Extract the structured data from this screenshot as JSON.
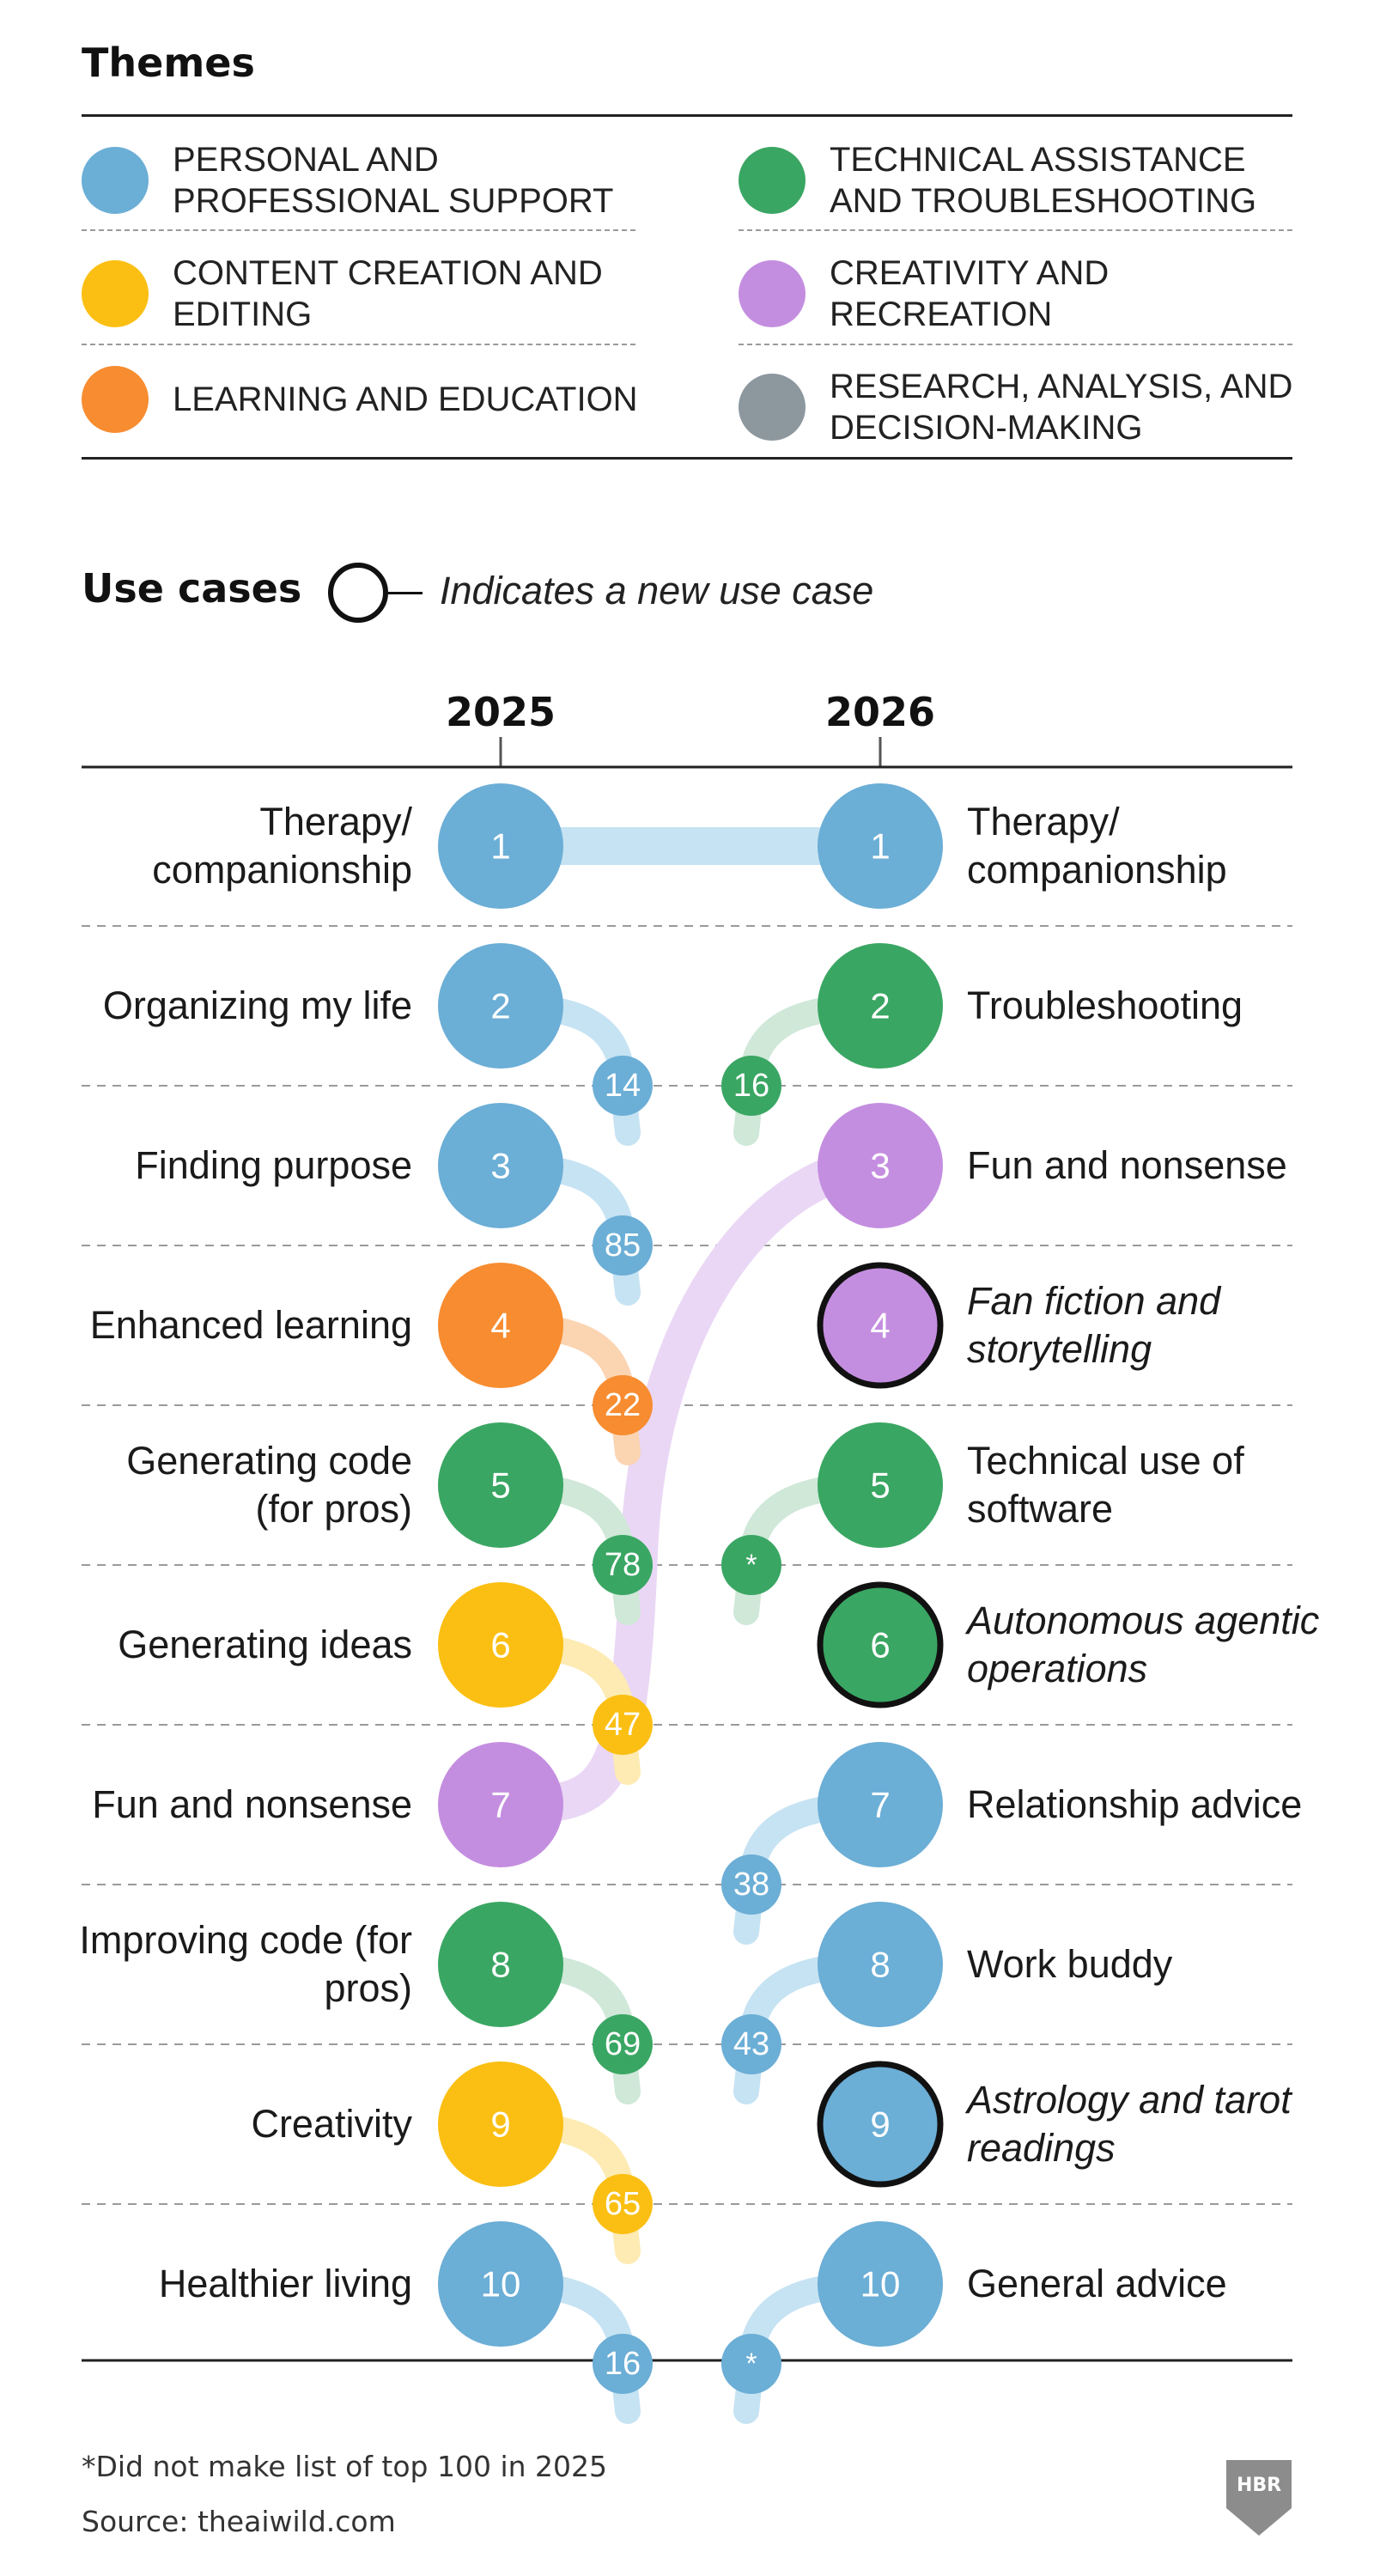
{
  "themes": {
    "title": "Themes",
    "items": [
      {
        "label": "PERSONAL AND PROFESSIONAL SUPPORT",
        "color": "#6baed6"
      },
      {
        "label": "TECHNICAL ASSISTANCE AND TROUBLESHOOTING",
        "color": "#3aa663"
      },
      {
        "label": "CONTENT CREATION AND EDITING",
        "color": "#fbbf13"
      },
      {
        "label": "CREATIVITY AND RECREATION",
        "color": "#c48ee0"
      },
      {
        "label": "LEARNING AND EDUCATION",
        "color": "#f78c30"
      },
      {
        "label": "RESEARCH, ANALYSIS, AND DECISION-MAKING",
        "color": "#8c979e"
      }
    ]
  },
  "usecases": {
    "title": "Use cases",
    "legend_note": "Indicates a new use case"
  },
  "chart_data": {
    "type": "bump",
    "columns": [
      "2025",
      "2026"
    ],
    "left": [
      {
        "rank": "1",
        "label": "Therapy/ companionship",
        "theme": "PERSONAL AND PROFESSIONAL SUPPORT",
        "rank_2026": "1"
      },
      {
        "rank": "2",
        "label": "Organizing my life",
        "theme": "PERSONAL AND PROFESSIONAL SUPPORT",
        "rank_2026": "14"
      },
      {
        "rank": "3",
        "label": "Finding purpose",
        "theme": "PERSONAL AND PROFESSIONAL SUPPORT",
        "rank_2026": "85"
      },
      {
        "rank": "4",
        "label": "Enhanced learning",
        "theme": "LEARNING AND EDUCATION",
        "rank_2026": "22"
      },
      {
        "rank": "5",
        "label": "Generating code (for pros)",
        "theme": "TECHNICAL ASSISTANCE AND TROUBLESHOOTING",
        "rank_2026": "78"
      },
      {
        "rank": "6",
        "label": "Generating ideas",
        "theme": "CONTENT CREATION AND EDITING",
        "rank_2026": "47"
      },
      {
        "rank": "7",
        "label": "Fun and nonsense",
        "theme": "CREATIVITY AND RECREATION",
        "rank_2026": "3"
      },
      {
        "rank": "8",
        "label": "Improving code (for pros)",
        "theme": "TECHNICAL ASSISTANCE AND TROUBLESHOOTING",
        "rank_2026": "69"
      },
      {
        "rank": "9",
        "label": "Creativity",
        "theme": "CONTENT CREATION AND EDITING",
        "rank_2026": "65"
      },
      {
        "rank": "10",
        "label": "Healthier living",
        "theme": "PERSONAL AND PROFESSIONAL SUPPORT",
        "rank_2026": "16"
      }
    ],
    "right": [
      {
        "rank": "1",
        "label": "Therapy/ companionship",
        "theme": "PERSONAL AND PROFESSIONAL SUPPORT",
        "rank_2025": "1",
        "new": false
      },
      {
        "rank": "2",
        "label": "Troubleshooting",
        "theme": "TECHNICAL ASSISTANCE AND TROUBLESHOOTING",
        "rank_2025": "16",
        "new": false
      },
      {
        "rank": "3",
        "label": "Fun and nonsense",
        "theme": "CREATIVITY AND RECREATION",
        "rank_2025": "7",
        "new": false
      },
      {
        "rank": "4",
        "label": "Fan fiction and storytelling",
        "theme": "CREATIVITY AND RECREATION",
        "rank_2025": "",
        "new": true
      },
      {
        "rank": "5",
        "label": "Technical use of software",
        "theme": "TECHNICAL ASSISTANCE AND TROUBLESHOOTING",
        "rank_2025": "*",
        "new": false
      },
      {
        "rank": "6",
        "label": "Autonomous agentic operations",
        "theme": "TECHNICAL ASSISTANCE AND TROUBLESHOOTING",
        "rank_2025": "",
        "new": true
      },
      {
        "rank": "7",
        "label": "Relationship advice",
        "theme": "PERSONAL AND PROFESSIONAL SUPPORT",
        "rank_2025": "38",
        "new": false
      },
      {
        "rank": "8",
        "label": "Work buddy",
        "theme": "PERSONAL AND PROFESSIONAL SUPPORT",
        "rank_2025": "43",
        "new": false
      },
      {
        "rank": "9",
        "label": "Astrology and tarot readings",
        "theme": "PERSONAL AND PROFESSIONAL SUPPORT",
        "rank_2025": "",
        "new": true
      },
      {
        "rank": "10",
        "label": "General advice",
        "theme": "PERSONAL AND PROFESSIONAL SUPPORT",
        "rank_2025": "*",
        "new": false
      }
    ]
  },
  "footer": {
    "note": "*Did not make list of top 100 in 2025",
    "source": "Source: theaiwild.com",
    "logo": "HBR"
  }
}
